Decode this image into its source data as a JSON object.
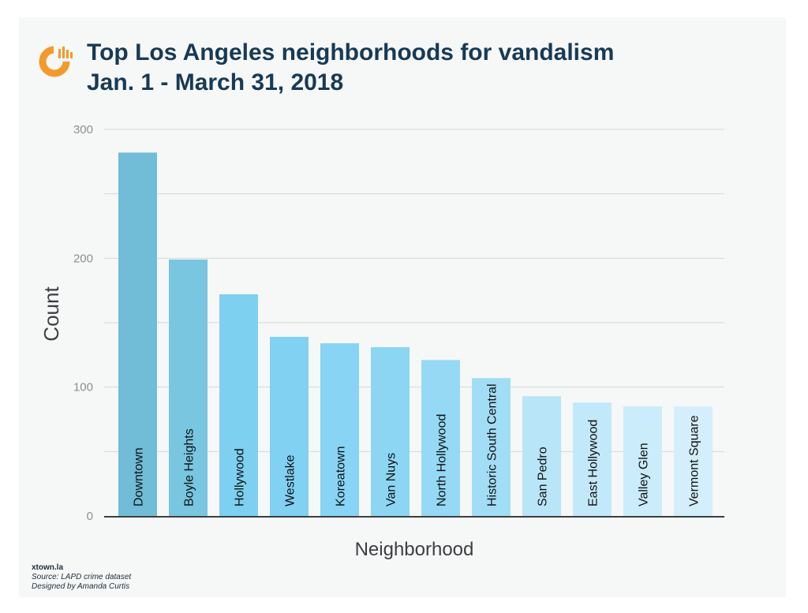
{
  "page": {
    "title_line1": "Top Los Angeles neighborhoods for vandalism",
    "title_line2": "Jan. 1 - March 31, 2018",
    "footer_brand": "xtown.la",
    "footer_source": "Source: LAPD crime dataset",
    "footer_designer": "Designed by Amanda Curtis"
  },
  "logo": {
    "icon": "crosstown-logo-icon",
    "color": "#f39a2b"
  },
  "chart_data": {
    "type": "bar",
    "title": "Top Los Angeles neighborhoods for vandalism",
    "subtitle": "Jan. 1 - March 31, 2018",
    "xlabel": "Neighborhood",
    "ylabel": "Count",
    "ylim": [
      0,
      300
    ],
    "yticks": [
      0,
      100,
      200,
      300
    ],
    "grid": true,
    "categories": [
      "Downtown",
      "Boyle Heights",
      "Hollywood",
      "Westlake",
      "Koreatown",
      "Van Nuys",
      "North Hollywood",
      "Historic South Central",
      "San Pedro",
      "East Hollywood",
      "Valley Glen",
      "Vermont Square"
    ],
    "values": [
      282,
      199,
      172,
      139,
      134,
      131,
      121,
      107,
      93,
      88,
      85,
      85
    ],
    "colors": [
      "#71bcd6",
      "#78c6e0",
      "#7dd0f0",
      "#81d1f3",
      "#87d4f4",
      "#8cd6f4",
      "#95d9f4",
      "#a1ddf5",
      "#b8e5f8",
      "#c2e9f9",
      "#cbecfa",
      "#d3effb"
    ]
  }
}
